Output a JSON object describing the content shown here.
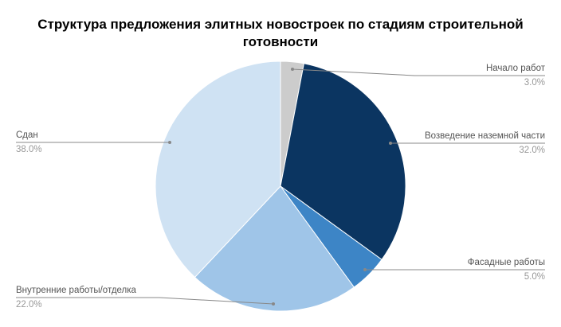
{
  "chart_data": {
    "type": "pie",
    "title": "Структура предложения элитных новостроек по стадиям строительной готовности",
    "categories": [
      "Начало работ",
      "Возведение наземной части",
      "Фасадные работы",
      "Внутренние работы/отделка",
      "Сдан"
    ],
    "values": [
      3,
      32,
      5,
      22,
      38
    ],
    "value_labels": [
      "3.0%",
      "32.0%",
      "5.0%",
      "22.0%",
      "38.0%"
    ],
    "colors": [
      "#cccccc",
      "#0b3561",
      "#3d85c6",
      "#9fc5e8",
      "#cfe2f3"
    ]
  }
}
